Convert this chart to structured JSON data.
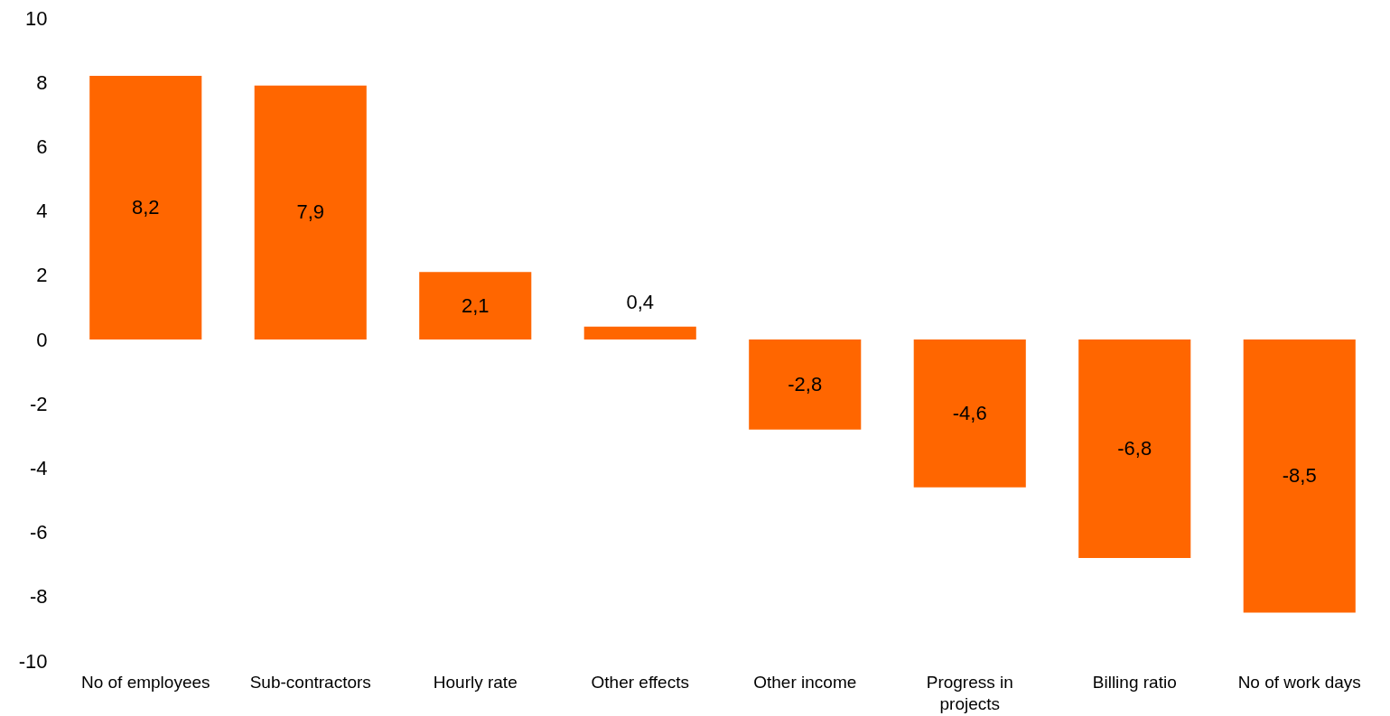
{
  "chart_data": {
    "type": "bar",
    "categories": [
      "No of employees",
      "Sub-contractors",
      "Hourly rate",
      "Other effects",
      "Other income",
      "Progress in projects",
      "Billing ratio",
      "No of work days"
    ],
    "series": [
      {
        "color": "#ff6600",
        "values": [
          8.2,
          7.9,
          2.1,
          0.4,
          -2.8,
          -4.6,
          -6.8,
          -8.5
        ],
        "value_labels": [
          "8,2",
          "7,9",
          "2,1",
          "0,4",
          "-2,8",
          "-4,6",
          "-6,8",
          "-8,5"
        ]
      }
    ],
    "ylim": [
      -10,
      10
    ],
    "yticks": [
      -10,
      -8,
      -6,
      -4,
      -2,
      0,
      2,
      4,
      6,
      8,
      10
    ]
  }
}
